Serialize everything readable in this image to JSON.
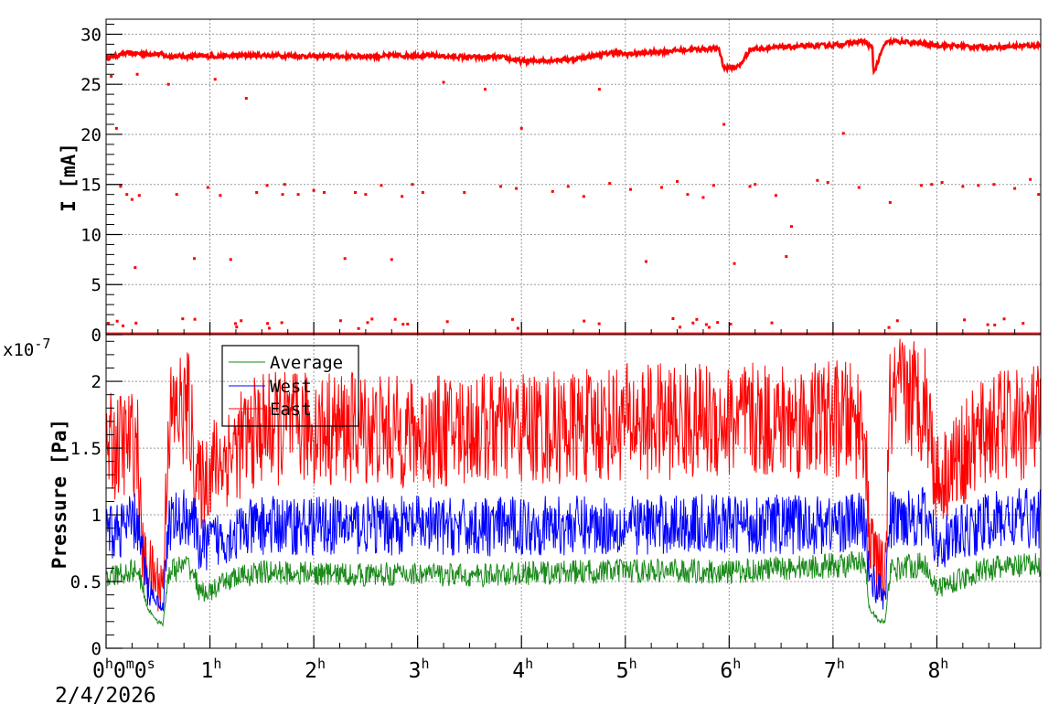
{
  "chart_data": [
    {
      "type": "scatter",
      "ylabel": "I [mA]",
      "ylim": [
        0,
        31.5
      ],
      "yticks": [
        0,
        5,
        10,
        15,
        20,
        25,
        30
      ],
      "xlim_hours": [
        0,
        9.0
      ],
      "grid": true,
      "series": [
        {
          "color": "#ff0000",
          "trend_x_hours": [
            0.0,
            0.15,
            0.16,
            0.55,
            0.56,
            1.0,
            1.5,
            2.0,
            2.5,
            3.0,
            3.5,
            3.8,
            4.0,
            4.5,
            4.9,
            5.0,
            5.5,
            5.9,
            5.95,
            6.1,
            6.2,
            6.5,
            7.0,
            7.3,
            7.38,
            7.39,
            7.5,
            7.6,
            8.0,
            8.5,
            9.0
          ],
          "trend_y": [
            27.6,
            28.0,
            28.1,
            28.0,
            27.8,
            27.8,
            27.9,
            27.8,
            27.8,
            27.9,
            27.7,
            27.7,
            27.3,
            27.5,
            28.2,
            28.0,
            28.4,
            28.6,
            26.6,
            26.8,
            28.5,
            28.7,
            28.9,
            29.3,
            28.6,
            26.1,
            29.1,
            29.3,
            28.9,
            28.7,
            28.9
          ],
          "outliers_x_hours": [
            0.05,
            0.1,
            0.14,
            0.2,
            0.25,
            0.28,
            0.3,
            0.32,
            0.6,
            0.68,
            0.85,
            0.98,
            1.05,
            1.1,
            1.2,
            1.35,
            1.45,
            1.55,
            1.7,
            1.72,
            1.85,
            2.0,
            2.1,
            2.3,
            2.4,
            2.5,
            2.65,
            2.75,
            2.85,
            2.95,
            3.05,
            3.25,
            3.45,
            3.65,
            3.8,
            3.95,
            4.0,
            4.3,
            4.45,
            4.6,
            4.75,
            4.85,
            5.05,
            5.2,
            5.35,
            5.5,
            5.6,
            5.75,
            5.85,
            5.95,
            6.05,
            6.2,
            6.25,
            6.45,
            6.55,
            6.6,
            6.85,
            6.95,
            7.1,
            7.25,
            7.55,
            7.85,
            7.95,
            8.05,
            8.25,
            8.4,
            8.55,
            8.75,
            8.9,
            8.98
          ],
          "outliers_y": [
            25.8,
            20.6,
            14.8,
            14.0,
            13.5,
            6.7,
            26.0,
            13.9,
            25.0,
            14.0,
            7.6,
            14.7,
            25.5,
            13.9,
            7.5,
            23.6,
            14.2,
            14.9,
            14.0,
            15.0,
            14.0,
            14.4,
            14.2,
            7.6,
            14.2,
            14.0,
            14.9,
            7.5,
            13.8,
            15.0,
            14.2,
            25.2,
            14.2,
            24.5,
            14.8,
            14.6,
            20.6,
            14.3,
            14.8,
            13.8,
            24.5,
            15.1,
            14.5,
            7.3,
            14.7,
            15.3,
            14.0,
            13.7,
            14.9,
            21.0,
            7.1,
            14.8,
            15.0,
            13.9,
            7.8,
            10.8,
            15.4,
            15.2,
            20.1,
            14.7,
            13.2,
            14.9,
            15.0,
            15.2,
            14.8,
            14.9,
            15.0,
            14.6,
            15.5,
            14.0
          ],
          "baseline_y": 0.1
        }
      ]
    },
    {
      "type": "line",
      "ylabel": "Pressure [Pa]",
      "yscale_label": "x10",
      "yscale_exp": "-7",
      "ylim": [
        0,
        2.35
      ],
      "yticks": [
        0,
        0.5,
        1,
        1.5,
        2
      ],
      "xlim_hours": [
        0,
        9.0
      ],
      "grid": true,
      "legend_position": "top-left",
      "series": [
        {
          "name": "Average",
          "color": "#1a8a1a",
          "x_hours": [
            0.0,
            0.3,
            0.4,
            0.5,
            0.55,
            0.6,
            0.7,
            0.8,
            0.85,
            0.9,
            1.0,
            1.2,
            1.5,
            2.0,
            2.5,
            3.0,
            3.5,
            4.0,
            4.5,
            5.0,
            5.5,
            6.0,
            6.5,
            7.0,
            7.3,
            7.35,
            7.45,
            7.5,
            7.55,
            7.7,
            7.9,
            8.0,
            8.5,
            9.0
          ],
          "mean": [
            0.52,
            0.6,
            0.3,
            0.2,
            0.18,
            0.57,
            0.6,
            0.62,
            0.55,
            0.42,
            0.42,
            0.52,
            0.57,
            0.56,
            0.55,
            0.56,
            0.54,
            0.56,
            0.57,
            0.58,
            0.58,
            0.57,
            0.6,
            0.62,
            0.63,
            0.3,
            0.2,
            0.2,
            0.58,
            0.62,
            0.62,
            0.45,
            0.6,
            0.62
          ],
          "noise": 0.07
        },
        {
          "name": "West",
          "color": "#0000ff",
          "x_hours": [
            0.0,
            0.3,
            0.4,
            0.5,
            0.55,
            0.6,
            0.7,
            0.8,
            0.85,
            0.9,
            1.0,
            1.5,
            2.0,
            2.5,
            3.0,
            3.5,
            4.0,
            4.5,
            5.0,
            5.5,
            6.0,
            6.5,
            7.0,
            7.3,
            7.35,
            7.45,
            7.5,
            7.55,
            7.7,
            7.9,
            8.0,
            8.5,
            9.0
          ],
          "mean": [
            0.85,
            0.95,
            0.45,
            0.35,
            0.3,
            0.95,
            0.95,
            1.0,
            0.92,
            0.75,
            0.8,
            0.92,
            0.92,
            0.92,
            0.92,
            0.9,
            0.92,
            0.92,
            0.92,
            0.93,
            0.93,
            0.93,
            0.93,
            0.95,
            0.55,
            0.42,
            0.4,
            0.95,
            1.0,
            0.98,
            0.78,
            0.95,
            0.98
          ],
          "noise": 0.17
        },
        {
          "name": "East",
          "color": "#ff0000",
          "x_hours": [
            0.0,
            0.3,
            0.35,
            0.45,
            0.5,
            0.55,
            0.6,
            0.7,
            0.8,
            0.85,
            0.9,
            1.0,
            1.5,
            2.0,
            2.5,
            3.0,
            3.5,
            4.0,
            4.5,
            5.0,
            5.5,
            6.0,
            6.5,
            7.0,
            7.3,
            7.35,
            7.45,
            7.5,
            7.55,
            7.7,
            7.9,
            8.0,
            8.5,
            9.0
          ],
          "mean": [
            1.5,
            1.55,
            0.7,
            0.55,
            0.5,
            0.5,
            1.7,
            1.78,
            1.8,
            1.4,
            1.2,
            1.35,
            1.65,
            1.65,
            1.65,
            1.6,
            1.65,
            1.65,
            1.65,
            1.7,
            1.7,
            1.7,
            1.7,
            1.72,
            1.7,
            0.8,
            0.6,
            0.55,
            1.82,
            1.9,
            1.85,
            1.25,
            1.65,
            1.7
          ],
          "noise": 0.34
        }
      ]
    }
  ],
  "time_axis": {
    "ticks_hours": [
      0,
      1,
      2,
      3,
      4,
      5,
      6,
      7,
      8
    ],
    "first_label": {
      "h": "0",
      "hs": "h",
      "m": "0",
      "ms": "m",
      "s": "0",
      "ss": "s"
    },
    "labels": [
      {
        "n": "1",
        "s": "h"
      },
      {
        "n": "2",
        "s": "h"
      },
      {
        "n": "3",
        "s": "h"
      },
      {
        "n": "4",
        "s": "h"
      },
      {
        "n": "5",
        "s": "h"
      },
      {
        "n": "6",
        "s": "h"
      },
      {
        "n": "7",
        "s": "h"
      },
      {
        "n": "8",
        "s": "h"
      }
    ],
    "date": "2/4/2026"
  }
}
